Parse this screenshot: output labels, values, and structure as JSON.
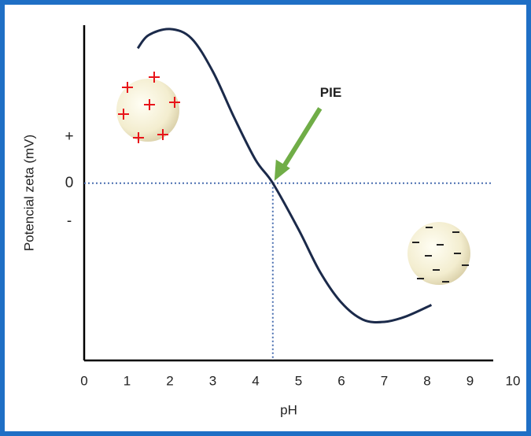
{
  "chart_data": {
    "type": "line",
    "x_label": "pH",
    "y_label": "Potencial zeta (mV)",
    "xlim": [
      0,
      10
    ],
    "xticks": [
      0,
      1,
      2,
      3,
      4,
      5,
      6,
      7,
      8,
      9,
      10
    ],
    "ylim": [
      -23,
      20.5
    ],
    "yticks": [
      {
        "value": 6,
        "label": "+"
      },
      0,
      {
        "value": -5,
        "label": "-"
      }
    ],
    "series": [
      {
        "color": "#1b2a4a",
        "x": [
          1.25,
          1.5,
          2,
          2.5,
          3,
          3.5,
          4,
          4.4,
          5,
          5.5,
          6,
          6.5,
          7,
          7.5,
          8.1
        ],
        "values": [
          17.5,
          19.2,
          20,
          18.8,
          14.5,
          8.5,
          3,
          0,
          -6,
          -11.5,
          -15.5,
          -17.7,
          -18,
          -17.3,
          -15.8
        ]
      }
    ],
    "annotations": [
      {
        "text": "PIE",
        "x": 4.4,
        "y": 0
      }
    ]
  }
}
